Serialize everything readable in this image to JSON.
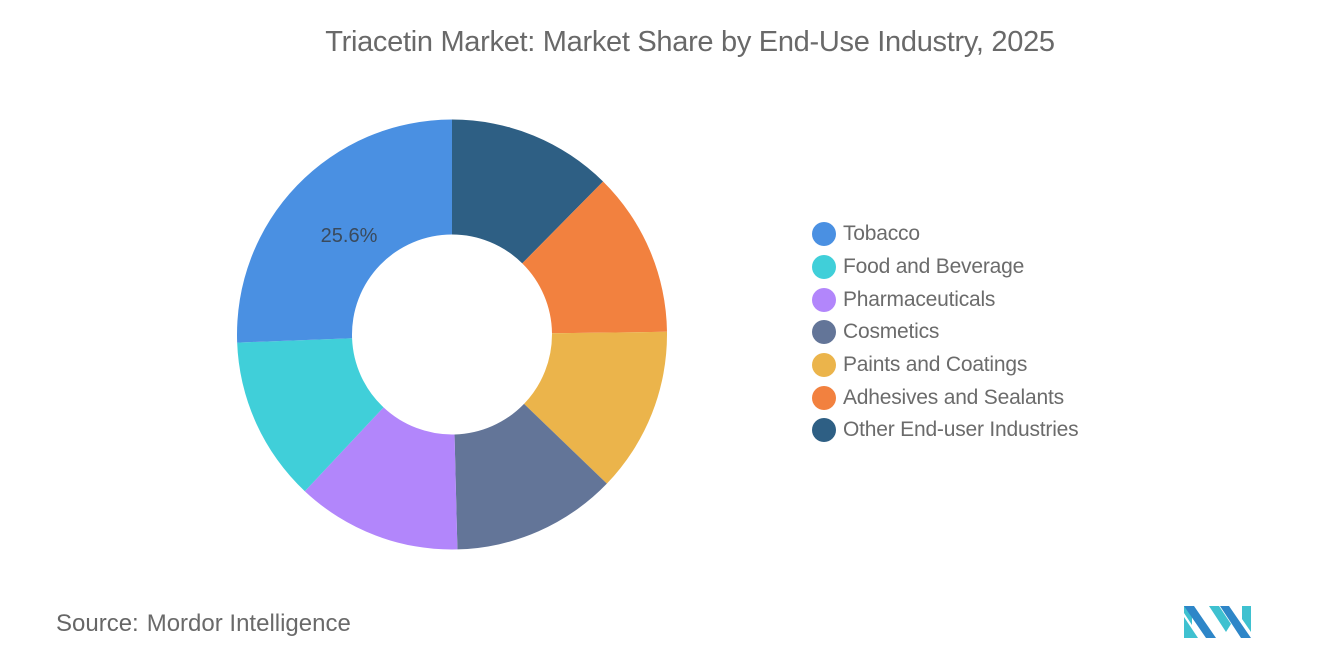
{
  "title": "Triacetin Market: Market Share by End-Use Industry, 2025",
  "source": {
    "label": "Source:",
    "value": "Mordor Intelligence"
  },
  "logo": {
    "name": "mordor-intelligence-logo",
    "colors": [
      "#3FC1D0",
      "#2E86C8"
    ]
  },
  "legend": {
    "items": [
      {
        "label": "Tobacco",
        "color": "#4A90E2"
      },
      {
        "label": "Food and Beverage",
        "color": "#40CFD9"
      },
      {
        "label": "Pharmaceuticals",
        "color": "#B286FB"
      },
      {
        "label": "Cosmetics",
        "color": "#637598"
      },
      {
        "label": "Paints and Coatings",
        "color": "#EBB44B"
      },
      {
        "label": "Adhesives and Sealants",
        "color": "#F2813F"
      },
      {
        "label": "Other End-user Industries",
        "color": "#2E5F84"
      }
    ]
  },
  "chart_data": {
    "type": "pie",
    "subtype": "donut",
    "title": "Triacetin Market: Market Share by End-Use Industry, 2025",
    "categories": [
      "Tobacco",
      "Food and Beverage",
      "Pharmaceuticals",
      "Cosmetics",
      "Paints and Coatings",
      "Adhesives and Sealants",
      "Other End-user Industries"
    ],
    "values": [
      25.6,
      12.4,
      12.4,
      12.4,
      12.4,
      12.4,
      12.4
    ],
    "unit": "%",
    "colors": [
      "#4A90E2",
      "#40CFD9",
      "#B286FB",
      "#637598",
      "#EBB44B",
      "#F2813F",
      "#2E5F84"
    ],
    "data_labels": [
      {
        "category": "Tobacco",
        "text": "25.6%"
      }
    ],
    "draw_order_clockwise_from_top": [
      "Other End-user Industries",
      "Adhesives and Sealants",
      "Paints and Coatings",
      "Cosmetics",
      "Pharmaceuticals",
      "Food and Beverage",
      "Tobacco"
    ],
    "legend_position": "right",
    "source": "Mordor Intelligence"
  }
}
